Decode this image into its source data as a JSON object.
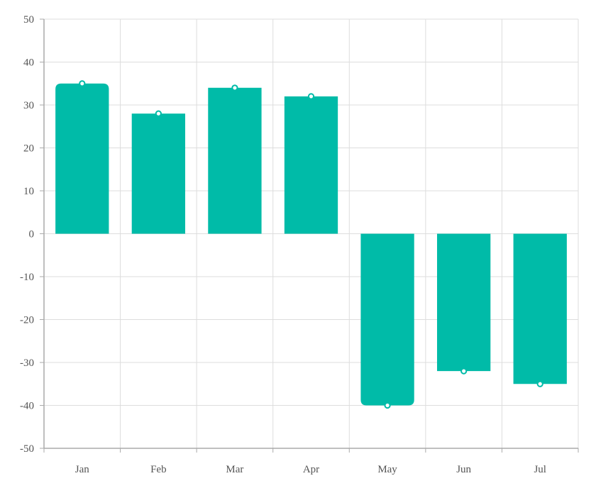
{
  "chart_data": {
    "type": "bar",
    "categories": [
      "Jan",
      "Feb",
      "Mar",
      "Apr",
      "May",
      "Jun",
      "Jul"
    ],
    "values": [
      35,
      28,
      34,
      32,
      -40,
      -32,
      -35
    ],
    "ylim": [
      -50,
      50
    ],
    "yticks": [
      50,
      40,
      30,
      20,
      10,
      0,
      -10,
      -20,
      -30,
      -40,
      -50
    ],
    "grid": true,
    "colors": {
      "bar": "#00bba8",
      "grid": "#dddddd",
      "axis": "#aaaaaa",
      "marker_fill": "#ffffff"
    }
  }
}
